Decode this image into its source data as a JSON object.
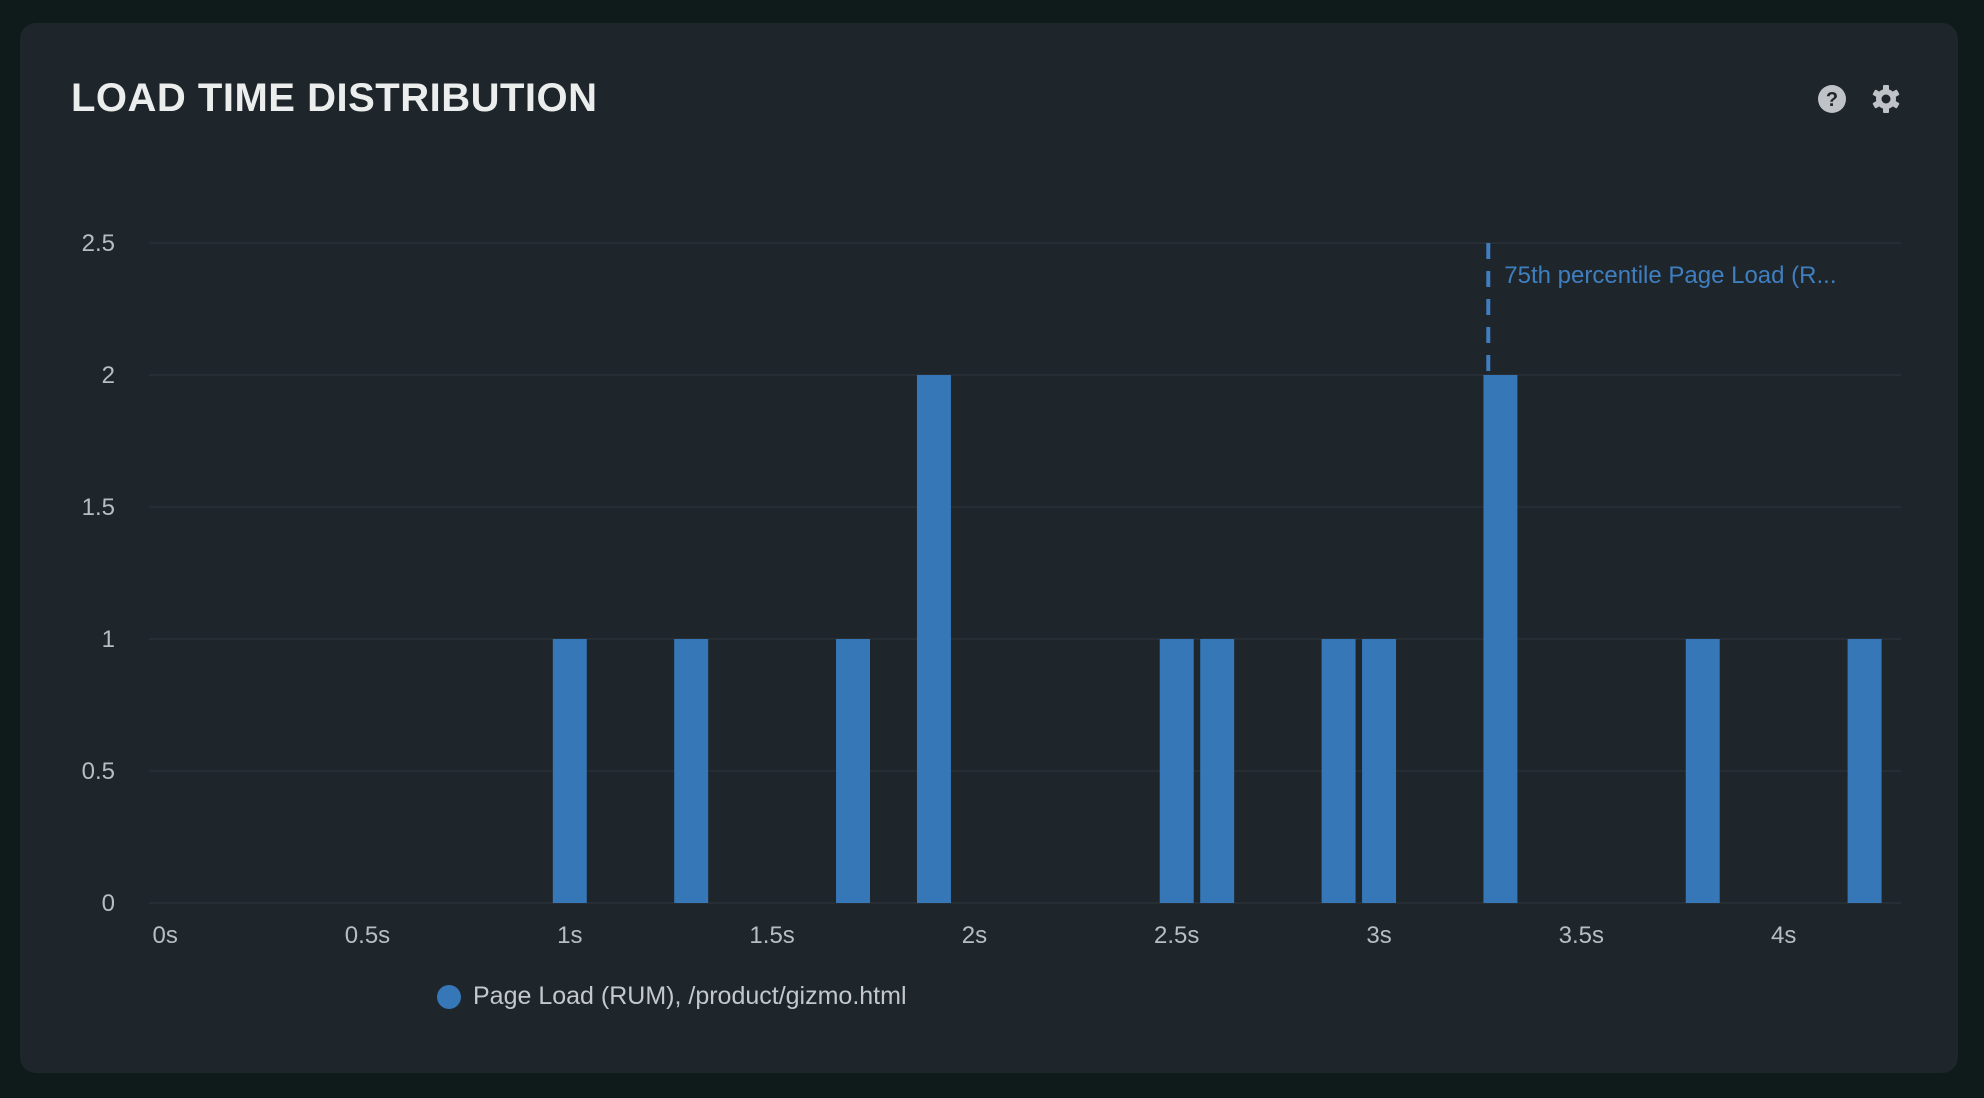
{
  "header": {
    "title": "LOAD TIME DISTRIBUTION",
    "icons": [
      "help-icon",
      "gear-icon"
    ]
  },
  "colors": {
    "bar": "#3677b8",
    "annotation": "#3f7fc0",
    "grid": "#283038",
    "background": "#1e252b"
  },
  "chart_data": {
    "type": "bar",
    "title": "LOAD TIME DISTRIBUTION",
    "xlabel": "",
    "ylabel": "",
    "xlim": [
      -0.04,
      4.29
    ],
    "ylim": [
      0,
      2.5
    ],
    "bin_width": 0.1,
    "x_ticks": [
      {
        "value": 0,
        "label": "0s"
      },
      {
        "value": 0.5,
        "label": "0.5s"
      },
      {
        "value": 1,
        "label": "1s"
      },
      {
        "value": 1.5,
        "label": "1.5s"
      },
      {
        "value": 2,
        "label": "2s"
      },
      {
        "value": 2.5,
        "label": "2.5s"
      },
      {
        "value": 3,
        "label": "3s"
      },
      {
        "value": 3.5,
        "label": "3.5s"
      },
      {
        "value": 4,
        "label": "4s"
      }
    ],
    "y_ticks": [
      {
        "value": 0,
        "label": "0"
      },
      {
        "value": 0.5,
        "label": "0.5"
      },
      {
        "value": 1,
        "label": "1"
      },
      {
        "value": 1.5,
        "label": "1.5"
      },
      {
        "value": 2,
        "label": "2"
      },
      {
        "value": 2.5,
        "label": "2.5"
      }
    ],
    "grid": true,
    "series": [
      {
        "name": "Page Load (RUM), /product/gizmo.html",
        "x": [
          1.0,
          1.3,
          1.7,
          1.9,
          2.5,
          2.6,
          2.9,
          3.0,
          3.3,
          3.8,
          4.2
        ],
        "values": [
          1,
          1,
          1,
          2,
          1,
          1,
          1,
          1,
          2,
          1,
          1
        ]
      }
    ],
    "annotations": [
      {
        "type": "vertical-dashed-line",
        "x": 3.27,
        "label": "75th percentile Page Load (R..."
      }
    ],
    "legend_position": "bottom-left"
  }
}
